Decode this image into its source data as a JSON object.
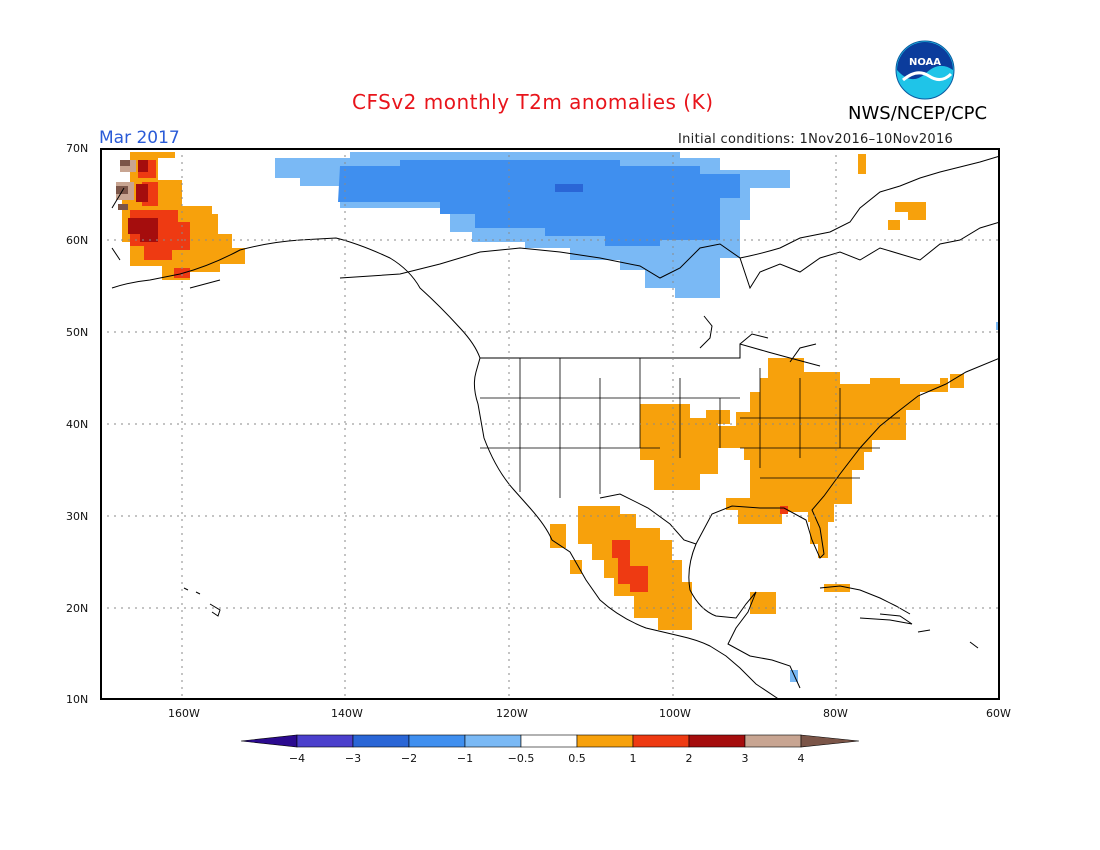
{
  "header": {
    "title": "CFSv2 monthly T2m anomalies (K)",
    "agency": "NWS/NCEP/CPC",
    "month": "Mar 2017",
    "initial_conditions": "Initial conditions: 1Nov2016–10Nov2016",
    "logo_text": "NOAA"
  },
  "map": {
    "latitude_labels": [
      "70N",
      "60N",
      "50N",
      "40N",
      "30N",
      "20N",
      "10N"
    ],
    "longitude_labels": [
      "160W",
      "140W",
      "120W",
      "100W",
      "80W",
      "60W"
    ],
    "extent": {
      "lon_min": -170,
      "lon_max": -60,
      "lat_min": 10,
      "lat_max": 70
    }
  },
  "legend": {
    "tick_labels": [
      "−4",
      "−3",
      "−2",
      "−1",
      "−0.5",
      "0.5",
      "1",
      "2",
      "3",
      "4"
    ],
    "colors": {
      "lt_-4": "#2b0a8f",
      "-4_-3": "#4b3fcc",
      "-3_-2": "#2a66d6",
      "-2_-1": "#3f8fef",
      "-1_-0.5": "#7ab9f5",
      "-0.5_0.5": "#ffffff",
      "0.5_1": "#f7a10c",
      "1_2": "#ee3a12",
      "2_3": "#a50d0d",
      "3_4": "#c8a592",
      "gt_4": "#7b5548"
    }
  }
}
